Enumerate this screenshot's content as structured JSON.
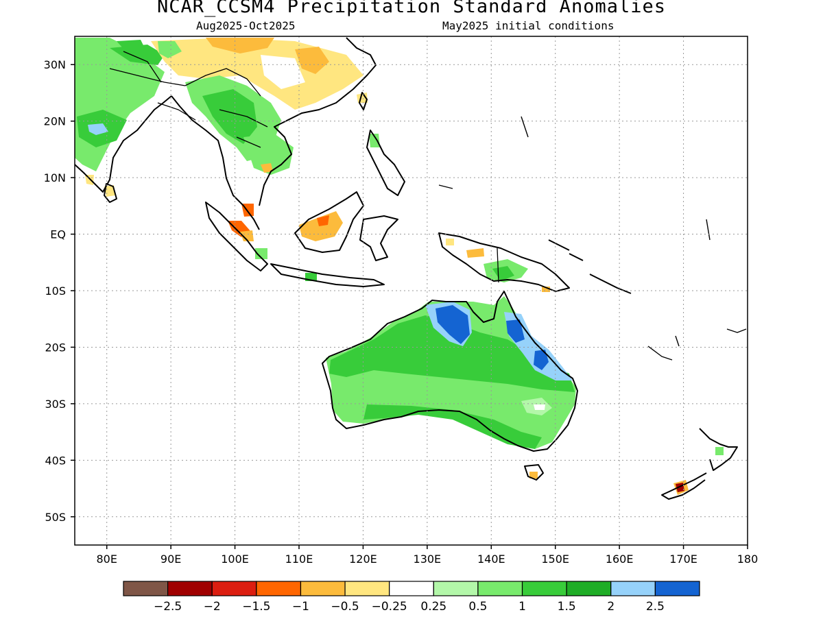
{
  "title": "NCAR_CCSM4 Precipitation Standard Anomalies",
  "subtitle_left": "Aug2025-Oct2025",
  "subtitle_right": "May2025 initial conditions",
  "map": {
    "lon_range": [
      75,
      180
    ],
    "lat_range": [
      -55,
      35
    ],
    "lat_ticks": [
      {
        "lat": 30,
        "label": "30N"
      },
      {
        "lat": 20,
        "label": "20N"
      },
      {
        "lat": 10,
        "label": "10N"
      },
      {
        "lat": 0,
        "label": "EQ"
      },
      {
        "lat": -10,
        "label": "10S"
      },
      {
        "lat": -20,
        "label": "20S"
      },
      {
        "lat": -30,
        "label": "30S"
      },
      {
        "lat": -40,
        "label": "40S"
      },
      {
        "lat": -50,
        "label": "50S"
      }
    ],
    "lon_ticks": [
      {
        "lon": 80,
        "label": "80E"
      },
      {
        "lon": 90,
        "label": "90E"
      },
      {
        "lon": 100,
        "label": "100E"
      },
      {
        "lon": 110,
        "label": "110E"
      },
      {
        "lon": 120,
        "label": "120E"
      },
      {
        "lon": 130,
        "label": "130E"
      },
      {
        "lon": 140,
        "label": "140E"
      },
      {
        "lon": 150,
        "label": "150E"
      },
      {
        "lon": 160,
        "label": "160E"
      },
      {
        "lon": 170,
        "label": "170E"
      },
      {
        "lon": 180,
        "label": "180"
      }
    ]
  },
  "colorbar": {
    "colors": [
      "#7f5647",
      "#a00000",
      "#dc1e10",
      "#ff6600",
      "#fcbb3c",
      "#ffe680",
      "#ffffff",
      "#b3f7a9",
      "#78ea6c",
      "#38cc3a",
      "#1fad26",
      "#96d2fa",
      "#1464d2"
    ],
    "labels": [
      "-2.5",
      "-2",
      "-1.5",
      "-1",
      "-0.5",
      "-0.25",
      "0.25",
      "0.5",
      "1",
      "1.5",
      "2",
      "2.5"
    ]
  }
}
